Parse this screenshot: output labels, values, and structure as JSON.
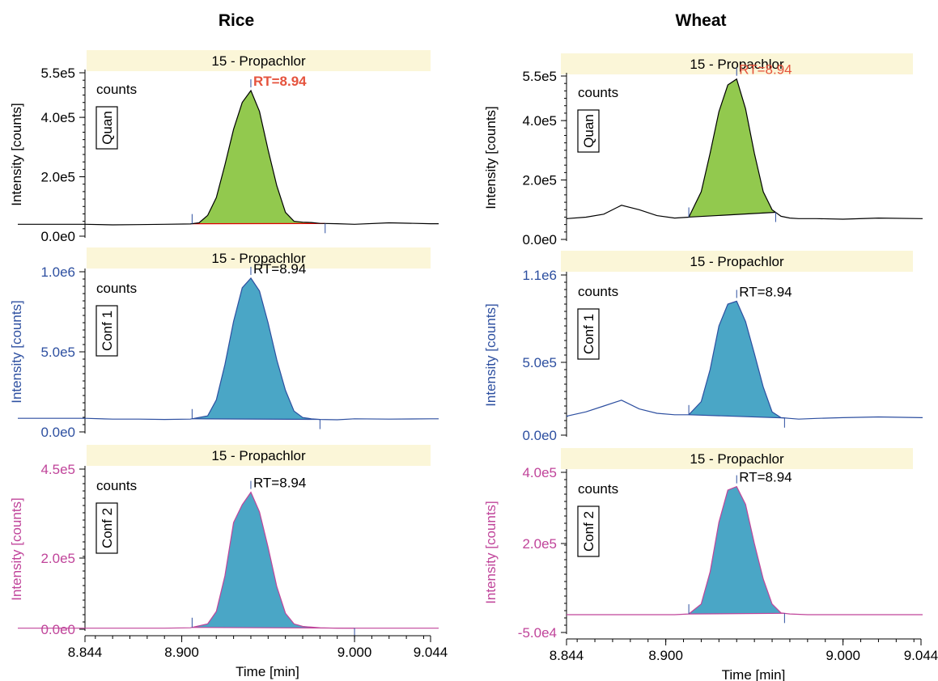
{
  "colors": {
    "banner": "#fbf6d8",
    "quan_fill": "#92c94e",
    "conf_fill": "#4aa6c6",
    "black": "#000000",
    "blue": "#2d4fa0",
    "magenta": "#c0449a",
    "rt_red": "#e5533d",
    "baseline_red": "#e00000"
  },
  "chart_data": [
    {
      "type": "area",
      "column": "Rice",
      "column_title": "Rice",
      "trace": "Quan",
      "banner": "15 - Propachlor",
      "rt_label": "RT=8.94",
      "counts_label": "counts",
      "ylabel": "Intensity [counts]",
      "y_ticks": [
        "5.5e5",
        "4.0e5",
        "2.0e5",
        "0.0e0"
      ],
      "y_tick_values": [
        550000,
        400000,
        200000,
        0
      ],
      "ylim": [
        0,
        550000
      ],
      "xlim": [
        8.844,
        9.044
      ],
      "x": [
        8.844,
        8.86,
        8.875,
        8.89,
        8.905,
        8.91,
        8.915,
        8.92,
        8.925,
        8.93,
        8.935,
        8.94,
        8.945,
        8.95,
        8.955,
        8.96,
        8.965,
        8.97,
        8.975,
        8.98,
        8.99,
        9.0,
        9.02,
        9.044
      ],
      "values": [
        40000,
        38000,
        39000,
        40000,
        41000,
        45000,
        70000,
        130000,
        240000,
        360000,
        450000,
        490000,
        420000,
        290000,
        170000,
        80000,
        50000,
        47000,
        46000,
        43000,
        42000,
        40000,
        45000,
        42000
      ],
      "peak_start": 8.906,
      "peak_end": 8.983,
      "peak_apex": 8.94,
      "apex_value": 490000
    },
    {
      "type": "area",
      "column": "Rice",
      "trace": "Conf 1",
      "banner": "15 - Propachlor",
      "rt_label": "RT=8.94",
      "counts_label": "counts",
      "ylabel": "Intensity [counts]",
      "y_ticks": [
        "1.0e6",
        "5.0e5",
        "0.0e0"
      ],
      "y_tick_values": [
        1000000,
        500000,
        0
      ],
      "ylim": [
        0,
        1000000
      ],
      "xlim": [
        8.844,
        9.044
      ],
      "x": [
        8.844,
        8.86,
        8.875,
        8.89,
        8.905,
        8.915,
        8.92,
        8.925,
        8.93,
        8.935,
        8.94,
        8.945,
        8.95,
        8.955,
        8.96,
        8.965,
        8.97,
        8.975,
        8.98,
        8.99,
        9.0,
        9.02,
        9.044
      ],
      "values": [
        85000,
        80000,
        80000,
        78000,
        80000,
        100000,
        200000,
        420000,
        690000,
        900000,
        960000,
        880000,
        680000,
        450000,
        260000,
        130000,
        90000,
        82000,
        78000,
        76000,
        82000,
        80000,
        82000
      ],
      "peak_start": 8.906,
      "peak_end": 8.98,
      "peak_apex": 8.94,
      "apex_value": 960000
    },
    {
      "type": "area",
      "column": "Rice",
      "trace": "Conf 2",
      "banner": "15 - Propachlor",
      "rt_label": "RT=8.94",
      "counts_label": "counts",
      "ylabel": "Intensity [counts]",
      "y_ticks": [
        "4.5e5",
        "2.0e5",
        "0.0e0"
      ],
      "y_tick_values": [
        450000,
        200000,
        0
      ],
      "ylim": [
        0,
        450000
      ],
      "xlim": [
        8.844,
        9.044
      ],
      "x": [
        8.844,
        8.86,
        8.875,
        8.89,
        8.905,
        8.915,
        8.92,
        8.925,
        8.93,
        8.935,
        8.94,
        8.945,
        8.95,
        8.955,
        8.96,
        8.965,
        8.97,
        8.975,
        8.98,
        8.99,
        9.0,
        9.02,
        9.044
      ],
      "values": [
        3000,
        3000,
        3000,
        3000,
        4000,
        15000,
        50000,
        150000,
        300000,
        350000,
        385000,
        330000,
        230000,
        120000,
        45000,
        15000,
        8000,
        6000,
        4000,
        3000,
        3000,
        3000,
        3000
      ],
      "peak_start": 8.906,
      "peak_end": 9.0,
      "peak_apex": 8.94,
      "apex_value": 385000,
      "xlabel": "Time [min]",
      "x_ticks": [
        "8.844",
        "8.900",
        "9.000",
        "9.044"
      ],
      "x_tick_values": [
        8.844,
        8.9,
        9.0,
        9.044
      ]
    },
    {
      "type": "area",
      "column": "Wheat",
      "column_title": "Wheat",
      "trace": "Quan",
      "banner": "15 - Propachlor",
      "rt_label": "RT=8.94",
      "counts_label": "counts",
      "ylabel": "Intensity [counts]",
      "y_ticks": [
        "5.5e5",
        "4.0e5",
        "2.0e5",
        "0.0e0"
      ],
      "y_tick_values": [
        550000,
        400000,
        200000,
        0
      ],
      "ylim": [
        0,
        550000
      ],
      "xlim": [
        8.844,
        9.044
      ],
      "x": [
        8.844,
        8.855,
        8.865,
        8.875,
        8.885,
        8.895,
        8.905,
        8.913,
        8.92,
        8.925,
        8.93,
        8.935,
        8.94,
        8.945,
        8.95,
        8.955,
        8.96,
        8.965,
        8.97,
        8.975,
        8.985,
        9.0,
        9.02,
        9.044
      ],
      "values": [
        70000,
        75000,
        85000,
        115000,
        100000,
        80000,
        72000,
        75000,
        160000,
        290000,
        430000,
        520000,
        540000,
        440000,
        290000,
        160000,
        100000,
        78000,
        72000,
        70000,
        70000,
        68000,
        72000,
        70000
      ],
      "peak_start": 8.913,
      "peak_end": 8.962,
      "peak_apex": 8.94,
      "apex_value": 540000
    },
    {
      "type": "area",
      "column": "Wheat",
      "trace": "Conf 1",
      "banner": "15 - Propachlor",
      "rt_label": "RT=8.94",
      "counts_label": "counts",
      "ylabel": "Intensity [counts]",
      "y_ticks": [
        "1.1e6",
        "5.0e5",
        "0.0e0"
      ],
      "y_tick_values": [
        1100000,
        500000,
        0
      ],
      "ylim": [
        0,
        1100000
      ],
      "xlim": [
        8.844,
        9.044
      ],
      "x": [
        8.844,
        8.855,
        8.865,
        8.875,
        8.885,
        8.895,
        8.905,
        8.913,
        8.92,
        8.925,
        8.93,
        8.935,
        8.94,
        8.945,
        8.95,
        8.955,
        8.96,
        8.965,
        8.97,
        8.975,
        8.985,
        9.0,
        9.02,
        9.044
      ],
      "values": [
        130000,
        160000,
        200000,
        240000,
        180000,
        150000,
        140000,
        140000,
        230000,
        450000,
        750000,
        900000,
        920000,
        780000,
        560000,
        330000,
        160000,
        120000,
        115000,
        110000,
        115000,
        120000,
        125000,
        120000
      ],
      "peak_start": 8.913,
      "peak_end": 8.967,
      "peak_apex": 8.94,
      "apex_value": 920000
    },
    {
      "type": "area",
      "column": "Wheat",
      "trace": "Conf 2",
      "banner": "15 - Propachlor",
      "rt_label": "RT=8.94",
      "counts_label": "counts",
      "ylabel": "Intensity [counts]",
      "y_ticks": [
        "4.0e5",
        "2.0e5",
        "-5.0e4"
      ],
      "y_tick_values": [
        400000,
        200000,
        -50000
      ],
      "ylim": [
        -50000,
        400000
      ],
      "xlim": [
        8.844,
        9.044
      ],
      "x": [
        8.844,
        8.87,
        8.895,
        8.905,
        8.913,
        8.92,
        8.925,
        8.93,
        8.935,
        8.94,
        8.945,
        8.95,
        8.955,
        8.96,
        8.965,
        8.97,
        8.98,
        9.0,
        9.02,
        9.044
      ],
      "values": [
        0,
        0,
        0,
        0,
        2000,
        30000,
        120000,
        260000,
        350000,
        360000,
        310000,
        200000,
        100000,
        30000,
        5000,
        2000,
        0,
        0,
        0,
        0
      ],
      "peak_start": 8.913,
      "peak_end": 8.967,
      "peak_apex": 8.94,
      "apex_value": 360000,
      "xlabel": "Time [min]",
      "x_ticks": [
        "8.844",
        "8.900",
        "9.000",
        "9.044"
      ],
      "x_tick_values": [
        8.844,
        8.9,
        9.0,
        9.044
      ]
    }
  ]
}
